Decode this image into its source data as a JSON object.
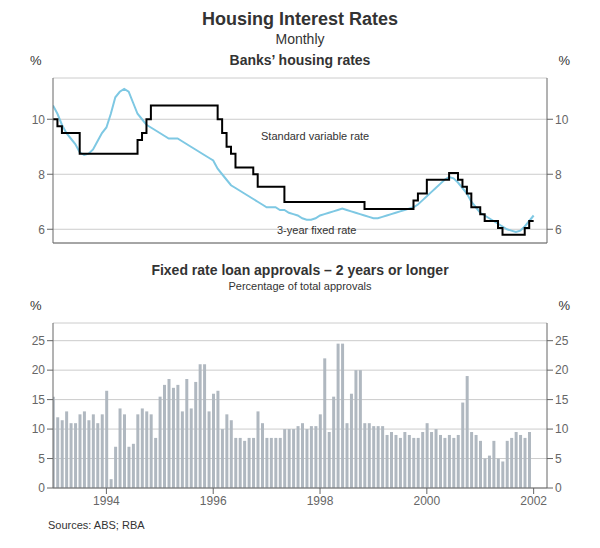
{
  "title": "Housing Interest Rates",
  "subtitle": "Monthly",
  "annotations": [
    "Sources: ABS; RBA"
  ],
  "chart_data": [
    {
      "type": "line",
      "title": "Banks’ housing rates",
      "ylabel": "%",
      "y2label": "%",
      "x": [
        1993.0,
        1993.083,
        1993.167,
        1993.25,
        1993.333,
        1993.417,
        1993.5,
        1993.583,
        1993.667,
        1993.75,
        1993.833,
        1993.917,
        1994.0,
        1994.083,
        1994.167,
        1994.25,
        1994.333,
        1994.417,
        1994.5,
        1994.583,
        1994.667,
        1994.75,
        1994.833,
        1994.917,
        1995.0,
        1995.083,
        1995.167,
        1995.25,
        1995.333,
        1995.417,
        1995.5,
        1995.583,
        1995.667,
        1995.75,
        1995.833,
        1995.917,
        1996.0,
        1996.083,
        1996.167,
        1996.25,
        1996.333,
        1996.417,
        1996.5,
        1996.583,
        1996.667,
        1996.75,
        1996.833,
        1996.917,
        1997.0,
        1997.083,
        1997.167,
        1997.25,
        1997.333,
        1997.417,
        1997.5,
        1997.583,
        1997.667,
        1997.75,
        1997.833,
        1997.917,
        1998.0,
        1998.083,
        1998.167,
        1998.25,
        1998.333,
        1998.417,
        1998.5,
        1998.583,
        1998.667,
        1998.75,
        1998.833,
        1998.917,
        1999.0,
        1999.083,
        1999.167,
        1999.25,
        1999.333,
        1999.417,
        1999.5,
        1999.583,
        1999.667,
        1999.75,
        1999.833,
        1999.917,
        2000.0,
        2000.083,
        2000.167,
        2000.25,
        2000.333,
        2000.417,
        2000.5,
        2000.583,
        2000.667,
        2000.75,
        2000.833,
        2000.917,
        2001.0,
        2001.083,
        2001.167,
        2001.25,
        2001.333,
        2001.417,
        2001.5,
        2001.583,
        2001.667,
        2001.75,
        2001.833,
        2001.917,
        2002.0
      ],
      "xlim": [
        1993.0,
        2002.25
      ],
      "xticks": [
        1994,
        1996,
        1998,
        2000,
        2002
      ],
      "ylim": [
        5.5,
        11.5
      ],
      "yticks": [
        6,
        8,
        10
      ],
      "y2lim": [
        5.5,
        11.5
      ],
      "y2ticks": [
        6,
        8,
        10
      ],
      "grid": true,
      "tick_labels": "y",
      "series": [
        {
          "name": "3-year fixed rate",
          "color": "#7ec8e3",
          "values": [
            10.5,
            10.2,
            9.8,
            9.5,
            9.3,
            9.1,
            8.8,
            8.7,
            8.75,
            8.9,
            9.2,
            9.5,
            9.7,
            10.2,
            10.8,
            11.0,
            11.1,
            11.0,
            10.6,
            10.2,
            10.0,
            9.8,
            9.7,
            9.6,
            9.5,
            9.4,
            9.3,
            9.3,
            9.3,
            9.2,
            9.1,
            9.0,
            8.9,
            8.8,
            8.7,
            8.6,
            8.5,
            8.2,
            8.0,
            7.8,
            7.6,
            7.5,
            7.4,
            7.3,
            7.2,
            7.1,
            7.0,
            6.9,
            6.8,
            6.8,
            6.8,
            6.7,
            6.7,
            6.6,
            6.55,
            6.5,
            6.4,
            6.35,
            6.35,
            6.4,
            6.5,
            6.55,
            6.6,
            6.65,
            6.7,
            6.75,
            6.7,
            6.65,
            6.6,
            6.55,
            6.5,
            6.45,
            6.4,
            6.4,
            6.45,
            6.5,
            6.55,
            6.6,
            6.65,
            6.7,
            6.75,
            6.8,
            6.9,
            7.05,
            7.2,
            7.35,
            7.5,
            7.65,
            7.8,
            7.9,
            7.85,
            7.7,
            7.5,
            7.3,
            7.0,
            6.8,
            6.6,
            6.5,
            6.4,
            6.3,
            6.2,
            6.1,
            6.0,
            5.95,
            5.9,
            5.95,
            6.1,
            6.3,
            6.5
          ]
        },
        {
          "name": "Standard variable rate",
          "color": "#000000",
          "line_style": "step",
          "values": [
            10.0,
            9.75,
            9.5,
            9.5,
            9.5,
            9.5,
            8.75,
            8.75,
            8.75,
            8.75,
            8.75,
            8.75,
            8.75,
            8.75,
            8.75,
            8.75,
            8.75,
            8.75,
            8.75,
            9.25,
            9.5,
            10.0,
            10.5,
            10.5,
            10.5,
            10.5,
            10.5,
            10.5,
            10.5,
            10.5,
            10.5,
            10.5,
            10.5,
            10.5,
            10.5,
            10.5,
            10.5,
            10.0,
            9.5,
            9.0,
            8.75,
            8.25,
            8.25,
            8.25,
            8.25,
            8.0,
            7.55,
            7.55,
            7.55,
            7.55,
            7.55,
            7.55,
            6.99,
            6.99,
            6.99,
            6.99,
            6.99,
            6.99,
            6.99,
            6.99,
            6.99,
            6.99,
            6.99,
            6.99,
            6.99,
            6.99,
            6.99,
            6.99,
            6.99,
            6.99,
            6.74,
            6.74,
            6.74,
            6.74,
            6.74,
            6.74,
            6.74,
            6.74,
            6.74,
            6.74,
            6.74,
            7.05,
            7.3,
            7.3,
            7.8,
            7.8,
            7.8,
            7.8,
            7.8,
            8.05,
            8.05,
            7.8,
            7.55,
            7.3,
            6.8,
            6.8,
            6.55,
            6.3,
            6.3,
            6.3,
            6.05,
            5.8,
            5.8,
            5.8,
            5.8,
            5.8,
            6.05,
            6.3,
            6.3
          ]
        }
      ]
    },
    {
      "type": "bar",
      "title": "Fixed rate loan approvals – 2 years or longer",
      "subtitle": "Percentage of total approvals",
      "ylabel": "%",
      "y2label": "%",
      "x": [
        1993.0,
        1993.083,
        1993.167,
        1993.25,
        1993.333,
        1993.417,
        1993.5,
        1993.583,
        1993.667,
        1993.75,
        1993.833,
        1993.917,
        1994.0,
        1994.083,
        1994.167,
        1994.25,
        1994.333,
        1994.417,
        1994.5,
        1994.583,
        1994.667,
        1994.75,
        1994.833,
        1994.917,
        1995.0,
        1995.083,
        1995.167,
        1995.25,
        1995.333,
        1995.417,
        1995.5,
        1995.583,
        1995.667,
        1995.75,
        1995.833,
        1995.917,
        1996.0,
        1996.083,
        1996.167,
        1996.25,
        1996.333,
        1996.417,
        1996.5,
        1996.583,
        1996.667,
        1996.75,
        1996.833,
        1996.917,
        1997.0,
        1997.083,
        1997.167,
        1997.25,
        1997.333,
        1997.417,
        1997.5,
        1997.583,
        1997.667,
        1997.75,
        1997.833,
        1997.917,
        1998.0,
        1998.083,
        1998.167,
        1998.25,
        1998.333,
        1998.417,
        1998.5,
        1998.583,
        1998.667,
        1998.75,
        1998.833,
        1998.917,
        1999.0,
        1999.083,
        1999.167,
        1999.25,
        1999.333,
        1999.417,
        1999.5,
        1999.583,
        1999.667,
        1999.75,
        1999.833,
        1999.917,
        2000.0,
        2000.083,
        2000.167,
        2000.25,
        2000.333,
        2000.417,
        2000.5,
        2000.583,
        2000.667,
        2000.75,
        2000.833,
        2000.917,
        2001.0,
        2001.083,
        2001.167,
        2001.25,
        2001.333,
        2001.417,
        2001.5,
        2001.583,
        2001.667,
        2001.75,
        2001.833,
        2001.917
      ],
      "values": [
        15.5,
        12.0,
        11.5,
        13.0,
        11.0,
        11.0,
        12.5,
        13.0,
        11.5,
        12.5,
        11.0,
        12.5,
        16.5,
        1.5,
        7.0,
        13.5,
        12.5,
        7.0,
        7.5,
        12.5,
        13.5,
        13.0,
        12.5,
        8.5,
        15.5,
        17.5,
        18.5,
        17.0,
        17.5,
        13.0,
        18.5,
        13.5,
        18.0,
        21.0,
        21.0,
        13.0,
        16.0,
        16.5,
        10.0,
        12.5,
        11.5,
        8.5,
        8.5,
        8.0,
        8.5,
        8.5,
        13.0,
        11.0,
        8.5,
        8.5,
        8.5,
        8.5,
        10.0,
        10.0,
        10.0,
        10.5,
        11.0,
        10.0,
        10.5,
        10.5,
        12.5,
        22.0,
        9.5,
        15.5,
        24.5,
        24.5,
        11.0,
        16.0,
        20.0,
        20.0,
        11.0,
        11.0,
        10.5,
        10.5,
        10.5,
        9.0,
        9.5,
        9.0,
        8.5,
        9.5,
        9.0,
        8.5,
        8.5,
        9.5,
        11.0,
        9.5,
        10.0,
        9.0,
        8.5,
        9.0,
        8.5,
        9.0,
        14.5,
        19.0,
        9.5,
        9.0,
        8.0,
        5.0,
        5.5,
        8.0,
        5.0,
        4.5,
        8.0,
        8.5,
        9.5,
        9.0,
        8.5,
        9.5
      ],
      "color": "#b0b8c0",
      "xlim": [
        1993.0,
        2002.25
      ],
      "xticks": [
        1994,
        1996,
        1998,
        2000,
        2002
      ],
      "ylim": [
        0,
        28
      ],
      "yticks": [
        0,
        5,
        10,
        15,
        20,
        25
      ],
      "y2lim": [
        0,
        28
      ],
      "y2ticks": [
        0,
        5,
        10,
        15,
        20,
        25
      ],
      "grid": true
    }
  ]
}
